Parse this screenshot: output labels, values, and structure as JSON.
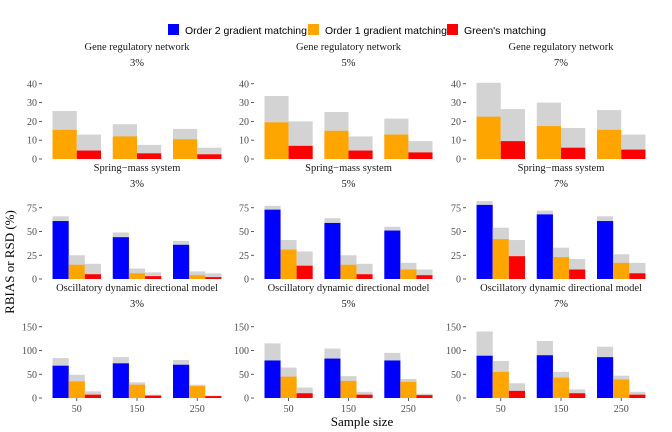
{
  "chart_data": {
    "type": "bar",
    "ylabel": "RBIAS or RSD (%)",
    "xlabel": "Sample size",
    "categories": [
      "50",
      "150",
      "250"
    ],
    "legend": {
      "position": "top",
      "entries": [
        {
          "name": "Order 2 gradient matching",
          "color": "#0000ff"
        },
        {
          "name": "Order 1 gradient matching",
          "color": "#ffa500"
        },
        {
          "name": "Green's matching",
          "color": "#ff0000"
        }
      ]
    },
    "rsd_color": "#d3d3d3",
    "columns": [
      "3%",
      "5%",
      "7%"
    ],
    "rows": [
      {
        "title": "Gene regulatory network",
        "ylim": [
          0,
          42
        ],
        "yticks": [
          "0",
          "10",
          "20",
          "30",
          "40"
        ],
        "ytick_values": [
          0,
          10,
          20,
          30,
          40
        ],
        "methods": [
          "Order 1 gradient matching",
          "Green's matching"
        ],
        "panels": [
          {
            "noise": "3%",
            "rbias": [
              [
                15.5,
                4.5
              ],
              [
                12,
                3
              ],
              [
                10.5,
                2.5
              ]
            ],
            "rsd": [
              [
                25.5,
                13
              ],
              [
                18.5,
                7.5
              ],
              [
                16,
                6
              ]
            ]
          },
          {
            "noise": "5%",
            "rbias": [
              [
                19.5,
                7
              ],
              [
                15,
                4.5
              ],
              [
                13,
                3.5
              ]
            ],
            "rsd": [
              [
                33.5,
                20
              ],
              [
                25,
                12
              ],
              [
                21.5,
                9.5
              ]
            ]
          },
          {
            "noise": "7%",
            "rbias": [
              [
                22.5,
                9.5
              ],
              [
                17.5,
                6
              ],
              [
                15.5,
                5
              ]
            ],
            "rsd": [
              [
                40.5,
                26.5
              ],
              [
                30,
                16.5
              ],
              [
                26,
                13
              ]
            ]
          }
        ]
      },
      {
        "title": "Spring−mass system",
        "ylim": [
          0,
          80
        ],
        "yticks": [
          "0",
          "25",
          "50",
          "75"
        ],
        "ytick_values": [
          0,
          25,
          50,
          75
        ],
        "methods": [
          "Order 2 gradient matching",
          "Order 1 gradient matching",
          "Green's matching"
        ],
        "panels": [
          {
            "noise": "3%",
            "rbias": [
              [
                61,
                15,
                5
              ],
              [
                44,
                6,
                3
              ],
              [
                36,
                4,
                2
              ]
            ],
            "rsd": [
              [
                66,
                25,
                16
              ],
              [
                49,
                11,
                7
              ],
              [
                40,
                8,
                6
              ]
            ]
          },
          {
            "noise": "5%",
            "rbias": [
              [
                73,
                31,
                14
              ],
              [
                59,
                15,
                5
              ],
              [
                51,
                10,
                4
              ]
            ],
            "rsd": [
              [
                77,
                41,
                29
              ],
              [
                64,
                25,
                16
              ],
              [
                55,
                17,
                10
              ]
            ]
          },
          {
            "noise": "7%",
            "rbias": [
              [
                78,
                42,
                24
              ],
              [
                68,
                23,
                10
              ],
              [
                61,
                17,
                6
              ]
            ],
            "rsd": [
              [
                82,
                54,
                41
              ],
              [
                72,
                33,
                21
              ],
              [
                66,
                26,
                17
              ]
            ]
          }
        ]
      },
      {
        "title": "Oscillatory dynamic directional model",
        "ylim": [
          0,
          160
        ],
        "yticks": [
          "0",
          "50",
          "100",
          "150"
        ],
        "ytick_values": [
          0,
          50,
          100,
          150
        ],
        "methods": [
          "Order 2 gradient matching",
          "Order 1 gradient matching",
          "Green's matching"
        ],
        "panels": [
          {
            "noise": "3%",
            "rbias": [
              [
                68,
                35,
                7
              ],
              [
                73,
                28,
                5
              ],
              [
                70,
                25,
                4
              ]
            ],
            "rsd": [
              [
                84,
                49,
                14
              ],
              [
                86,
                33,
                7
              ],
              [
                80,
                28,
                5
              ]
            ]
          },
          {
            "noise": "5%",
            "rbias": [
              [
                79,
                45,
                10
              ],
              [
                83,
                36,
                7
              ],
              [
                79,
                34,
                6
              ]
            ],
            "rsd": [
              [
                115,
                64,
                22
              ],
              [
                104,
                46,
                13
              ],
              [
                95,
                40,
                9
              ]
            ]
          },
          {
            "noise": "7%",
            "rbias": [
              [
                89,
                55,
                15
              ],
              [
                90,
                43,
                10
              ],
              [
                86,
                39,
                7
              ]
            ],
            "rsd": [
              [
                140,
                78,
                31
              ],
              [
                120,
                55,
                18
              ],
              [
                108,
                47,
                13
              ]
            ]
          }
        ]
      }
    ]
  }
}
